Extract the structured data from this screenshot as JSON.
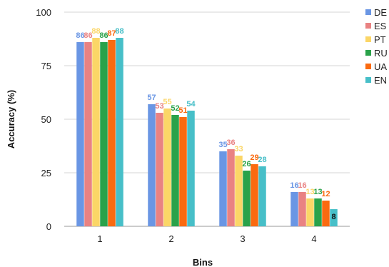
{
  "chart_data": {
    "type": "bar",
    "xlabel": "Bins",
    "ylabel": "Accuracy (%)",
    "ylim": [
      0,
      100
    ],
    "yticks": [
      0,
      25,
      50,
      75,
      100
    ],
    "categories": [
      "1",
      "2",
      "3",
      "4"
    ],
    "grid": true,
    "legend_position": "right",
    "series": [
      {
        "name": "DE",
        "color": "#6a96e4",
        "values": [
          86,
          57,
          35,
          16
        ],
        "labels": [
          "86",
          "57",
          "35",
          "16"
        ]
      },
      {
        "name": "ES",
        "color": "#e98282",
        "values": [
          86,
          53,
          36,
          16
        ],
        "labels": [
          "86",
          "53",
          "36",
          "16"
        ]
      },
      {
        "name": "PT",
        "color": "#fbd667",
        "values": [
          88,
          55,
          33,
          13
        ],
        "labels": [
          "88",
          "55",
          "33",
          "13"
        ]
      },
      {
        "name": "RU",
        "color": "#2aa24a",
        "values": [
          86,
          52,
          26,
          13
        ],
        "labels": [
          "86",
          "52",
          "26",
          "13"
        ]
      },
      {
        "name": "UA",
        "color": "#fa6a10",
        "values": [
          87,
          51,
          29,
          12
        ],
        "labels": [
          "87",
          "51",
          "29",
          "12"
        ]
      },
      {
        "name": "EN",
        "color": "#47bfc8",
        "values": [
          88,
          54,
          28,
          8
        ],
        "labels": [
          "88",
          "54",
          "28",
          "8"
        ]
      }
    ]
  }
}
